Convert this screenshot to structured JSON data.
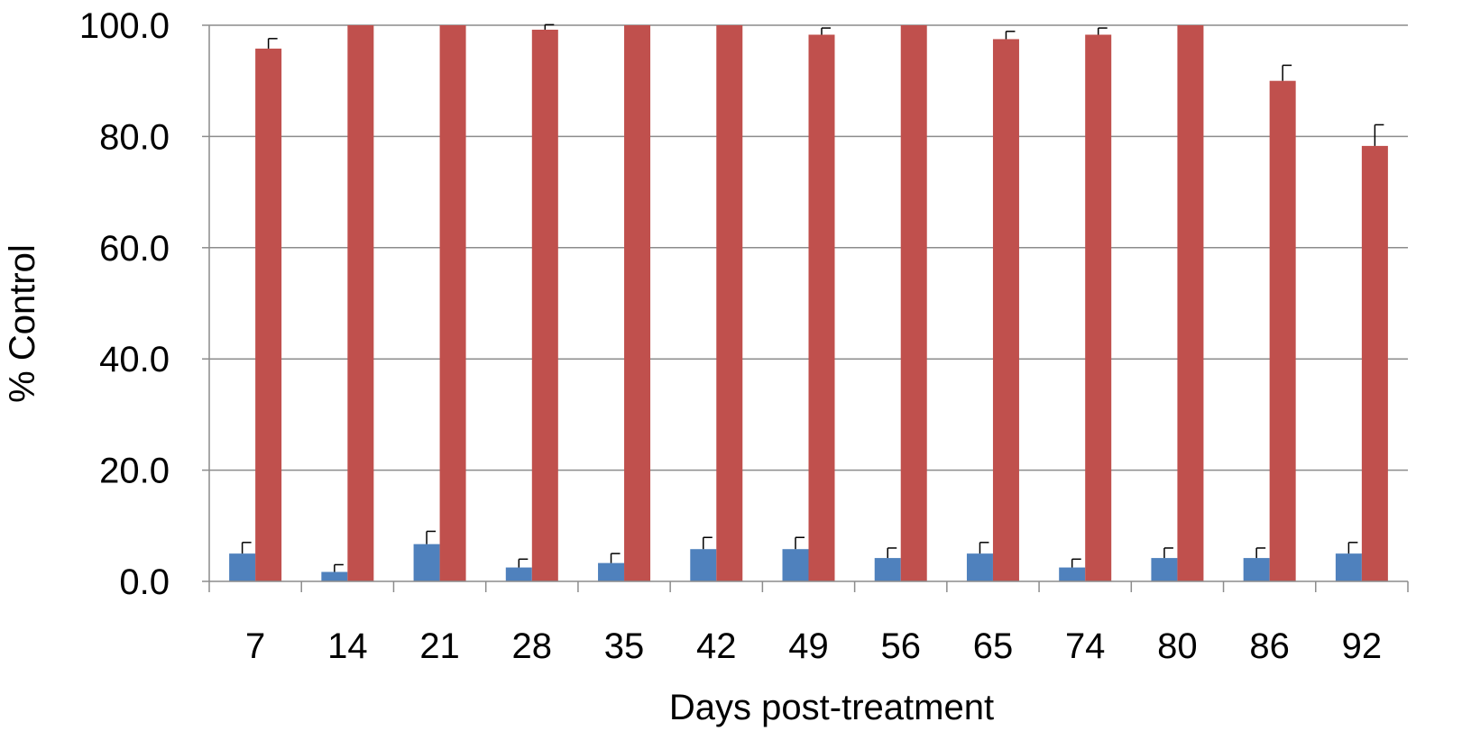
{
  "chart_data": {
    "type": "bar",
    "title": "",
    "xlabel": "Days post-treatment",
    "ylabel": "% Control",
    "categories": [
      "7",
      "14",
      "21",
      "28",
      "35",
      "42",
      "49",
      "56",
      "65",
      "74",
      "80",
      "86",
      "92"
    ],
    "yticks": [
      "0.0",
      "20.0",
      "40.0",
      "60.0",
      "80.0",
      "100.0"
    ],
    "ylim": [
      0,
      100
    ],
    "grid": true,
    "legend": "none",
    "series": [
      {
        "color": "#4F81BD",
        "values": [
          5.0,
          1.7,
          6.7,
          2.5,
          3.3,
          5.8,
          5.8,
          4.2,
          5.0,
          2.5,
          4.2,
          4.2,
          5.0
        ],
        "errors": [
          2.0,
          1.3,
          2.3,
          1.5,
          1.7,
          2.1,
          2.1,
          1.8,
          2.0,
          1.5,
          1.8,
          1.8,
          2.0
        ]
      },
      {
        "color": "#C0504D",
        "values": [
          95.8,
          100.0,
          100.0,
          99.2,
          100.0,
          100.0,
          98.3,
          100.0,
          97.5,
          98.3,
          100.0,
          90.0,
          78.3
        ],
        "errors": [
          1.8,
          0.0,
          0.0,
          0.9,
          0.0,
          0.0,
          1.2,
          0.0,
          1.4,
          1.2,
          0.0,
          2.8,
          3.8
        ]
      }
    ]
  }
}
